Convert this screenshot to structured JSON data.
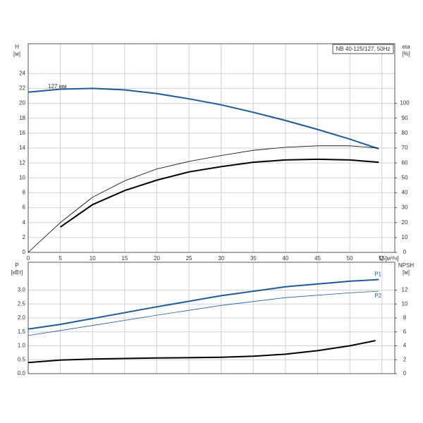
{
  "chart_data": [
    {
      "type": "line",
      "title": "NB 40-125/127, 50Hz",
      "y_label": "H",
      "y_unit": "[м]",
      "y2_label": "eta",
      "y2_unit": "[%]",
      "x_label": "Q [м³/ч]",
      "annotations": [
        "127 мм"
      ],
      "xlim": [
        0,
        57
      ],
      "xticks": [
        0,
        5,
        10,
        15,
        20,
        25,
        30,
        35,
        40,
        45,
        50,
        55
      ],
      "xtick_labels": true,
      "ylim": [
        0,
        28
      ],
      "yticks": [
        0,
        2,
        4,
        6,
        8,
        10,
        12,
        14,
        16,
        18,
        20,
        22,
        24
      ],
      "y2lim": [
        0,
        140
      ],
      "y2ticks": [
        0,
        10,
        20,
        30,
        40,
        50,
        60,
        70,
        80,
        90,
        100
      ],
      "grid": true,
      "series": [
        {
          "color": "#1f5a96",
          "x": [
            0,
            5,
            10,
            15,
            20,
            25,
            30,
            35,
            40,
            45,
            50,
            54.5
          ],
          "values": [
            21.5,
            21.9,
            22.0,
            21.8,
            21.3,
            20.6,
            19.8,
            18.8,
            17.7,
            16.5,
            15.2,
            13.9
          ]
        },
        {
          "color": "#000000",
          "axis": "y2",
          "x": [
            0,
            5,
            10,
            15,
            20,
            25,
            30,
            35,
            40,
            45,
            50,
            54.5
          ],
          "values": [
            0,
            20,
            37,
            48,
            56,
            61,
            65,
            68.5,
            70.5,
            71.5,
            71.5,
            70
          ]
        },
        {
          "color": "#000000",
          "axis": "y2",
          "x": [
            5,
            10,
            15,
            20,
            25,
            30,
            35,
            40,
            45,
            50,
            54.5
          ],
          "values": [
            17,
            32,
            41.5,
            48.5,
            54,
            57.5,
            60.5,
            62,
            62.5,
            62,
            60.5
          ]
        }
      ]
    },
    {
      "type": "line",
      "y_label": "P",
      "y_unit": "[кВт]",
      "y2_label": "NPSH",
      "y2_unit": "[м]",
      "xlim": [
        0,
        57
      ],
      "xticks": [
        0,
        5,
        10,
        15,
        20,
        25,
        30,
        35,
        40,
        45,
        50,
        55
      ],
      "xtick_labels": false,
      "ylim": [
        0,
        4
      ],
      "yticks": [
        {
          "value": 0,
          "label": "0.0"
        },
        0.5,
        {
          "value": 1,
          "label": "1.0"
        },
        1.5,
        {
          "value": 2,
          "label": "2.0"
        },
        2.5,
        {
          "value": 3,
          "label": "3.0"
        }
      ],
      "y2lim": [
        0,
        16
      ],
      "y2ticks": [
        0,
        2,
        4,
        6,
        8,
        10,
        12
      ],
      "grid": true,
      "series": [
        {
          "name": "P1",
          "color": "#1f5a96",
          "x": [
            0,
            5,
            10,
            20,
            30,
            40,
            50,
            54.5
          ],
          "values": [
            1.6,
            1.77,
            1.98,
            2.4,
            2.8,
            3.12,
            3.32,
            3.38
          ]
        },
        {
          "name": "P2",
          "color": "#1f5a96",
          "x": [
            0,
            5,
            10,
            20,
            30,
            40,
            50,
            54.5
          ],
          "values": [
            1.37,
            1.55,
            1.73,
            2.1,
            2.45,
            2.73,
            2.9,
            2.96
          ]
        },
        {
          "color": "#000000",
          "axis": "y2",
          "x": [
            0,
            5,
            10,
            20,
            30,
            35,
            40,
            45,
            50,
            54
          ],
          "values": [
            1.6,
            1.95,
            2.1,
            2.25,
            2.35,
            2.5,
            2.8,
            3.3,
            4.0,
            4.75
          ]
        }
      ]
    }
  ]
}
